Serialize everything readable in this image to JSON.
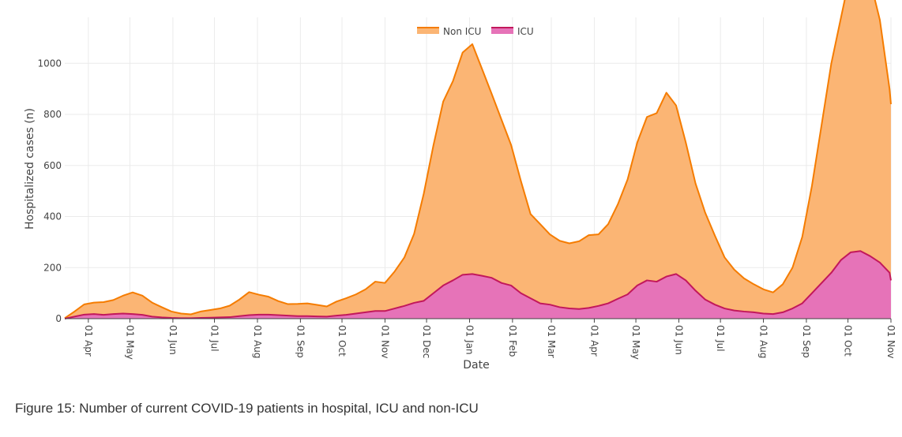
{
  "caption": "Figure 15: Number of current COVID-19 patients in hospital, ICU and non-ICU",
  "chart_data": {
    "type": "area",
    "stacked": true,
    "xlabel": "Date",
    "ylabel": "Hospitalized cases (n)",
    "x_range": [
      "2020-03-15",
      "2021-11-01"
    ],
    "ylim": [
      0,
      1180
    ],
    "y_ticks": [
      0,
      200,
      400,
      600,
      800,
      1000
    ],
    "x_ticks": [
      {
        "date": "2020-04-01",
        "label": "01 Apr"
      },
      {
        "date": "2020-05-01",
        "label": "01 May"
      },
      {
        "date": "2020-06-01",
        "label": "01 Jun"
      },
      {
        "date": "2020-07-01",
        "label": "01 Jul"
      },
      {
        "date": "2020-08-01",
        "label": "01 Aug"
      },
      {
        "date": "2020-09-01",
        "label": "01 Sep"
      },
      {
        "date": "2020-10-01",
        "label": "01 Oct"
      },
      {
        "date": "2020-11-01",
        "label": "01 Nov"
      },
      {
        "date": "2020-12-01",
        "label": "01 Dec"
      },
      {
        "date": "2021-01-01",
        "label": "01 Jan"
      },
      {
        "date": "2021-02-01",
        "label": "01 Feb"
      },
      {
        "date": "2021-03-01",
        "label": "01 Mar"
      },
      {
        "date": "2021-04-01",
        "label": "01 Apr"
      },
      {
        "date": "2021-05-01",
        "label": "01 May"
      },
      {
        "date": "2021-06-01",
        "label": "01 Jun"
      },
      {
        "date": "2021-07-01",
        "label": "01 Jul"
      },
      {
        "date": "2021-08-01",
        "label": "01 Aug"
      },
      {
        "date": "2021-09-01",
        "label": "01 Sep"
      },
      {
        "date": "2021-10-01",
        "label": "01 Oct"
      },
      {
        "date": "2021-11-01",
        "label": "01 Nov"
      }
    ],
    "grid": true,
    "legend_position": "top-center",
    "series": [
      {
        "name": "Non ICU",
        "line_color": "#f57c00",
        "fill_color": "#fbb574",
        "points": [
          [
            "2020-03-15",
            2
          ],
          [
            "2020-03-22",
            20
          ],
          [
            "2020-03-29",
            40
          ],
          [
            "2020-04-05",
            45
          ],
          [
            "2020-04-12",
            50
          ],
          [
            "2020-04-19",
            55
          ],
          [
            "2020-04-26",
            70
          ],
          [
            "2020-05-03",
            85
          ],
          [
            "2020-05-10",
            75
          ],
          [
            "2020-05-17",
            55
          ],
          [
            "2020-05-24",
            40
          ],
          [
            "2020-05-31",
            25
          ],
          [
            "2020-06-07",
            18
          ],
          [
            "2020-06-14",
            15
          ],
          [
            "2020-06-21",
            25
          ],
          [
            "2020-06-28",
            30
          ],
          [
            "2020-07-05",
            35
          ],
          [
            "2020-07-12",
            45
          ],
          [
            "2020-07-19",
            65
          ],
          [
            "2020-07-26",
            90
          ],
          [
            "2020-08-02",
            78
          ],
          [
            "2020-08-09",
            70
          ],
          [
            "2020-08-16",
            55
          ],
          [
            "2020-08-23",
            45
          ],
          [
            "2020-08-30",
            48
          ],
          [
            "2020-09-06",
            50
          ],
          [
            "2020-09-13",
            45
          ],
          [
            "2020-09-20",
            40
          ],
          [
            "2020-09-27",
            55
          ],
          [
            "2020-10-04",
            65
          ],
          [
            "2020-10-11",
            75
          ],
          [
            "2020-10-18",
            90
          ],
          [
            "2020-10-25",
            115
          ],
          [
            "2020-11-01",
            110
          ],
          [
            "2020-11-08",
            145
          ],
          [
            "2020-11-15",
            190
          ],
          [
            "2020-11-22",
            270
          ],
          [
            "2020-11-29",
            420
          ],
          [
            "2020-12-06",
            580
          ],
          [
            "2020-12-13",
            720
          ],
          [
            "2020-12-20",
            780
          ],
          [
            "2020-12-27",
            870
          ],
          [
            "2021-01-03",
            900
          ],
          [
            "2021-01-10",
            810
          ],
          [
            "2021-01-17",
            720
          ],
          [
            "2021-01-24",
            640
          ],
          [
            "2021-01-31",
            550
          ],
          [
            "2021-02-07",
            440
          ],
          [
            "2021-02-14",
            330
          ],
          [
            "2021-02-21",
            310
          ],
          [
            "2021-02-28",
            275
          ],
          [
            "2021-03-07",
            260
          ],
          [
            "2021-03-14",
            255
          ],
          [
            "2021-03-21",
            265
          ],
          [
            "2021-03-28",
            285
          ],
          [
            "2021-04-04",
            280
          ],
          [
            "2021-04-11",
            310
          ],
          [
            "2021-04-18",
            370
          ],
          [
            "2021-04-25",
            450
          ],
          [
            "2021-05-02",
            560
          ],
          [
            "2021-05-09",
            640
          ],
          [
            "2021-05-16",
            660
          ],
          [
            "2021-05-23",
            720
          ],
          [
            "2021-05-30",
            660
          ],
          [
            "2021-06-06",
            540
          ],
          [
            "2021-06-13",
            420
          ],
          [
            "2021-06-20",
            340
          ],
          [
            "2021-06-27",
            270
          ],
          [
            "2021-07-04",
            200
          ],
          [
            "2021-07-11",
            160
          ],
          [
            "2021-07-18",
            130
          ],
          [
            "2021-07-25",
            110
          ],
          [
            "2021-08-01",
            95
          ],
          [
            "2021-08-08",
            85
          ],
          [
            "2021-08-15",
            110
          ],
          [
            "2021-08-22",
            160
          ],
          [
            "2021-08-29",
            260
          ],
          [
            "2021-09-05",
            420
          ],
          [
            "2021-09-12",
            620
          ],
          [
            "2021-09-19",
            820
          ],
          [
            "2021-09-26",
            950
          ],
          [
            "2021-10-03",
            1100
          ],
          [
            "2021-10-10",
            1110
          ],
          [
            "2021-10-17",
            1080
          ],
          [
            "2021-10-24",
            950
          ],
          [
            "2021-10-31",
            720
          ],
          [
            "2021-11-01",
            690
          ]
        ]
      },
      {
        "name": "ICU",
        "line_color": "#c2185b",
        "fill_color": "#e673b8",
        "points": [
          [
            "2020-03-15",
            0
          ],
          [
            "2020-03-22",
            8
          ],
          [
            "2020-03-29",
            16
          ],
          [
            "2020-04-05",
            18
          ],
          [
            "2020-04-12",
            15
          ],
          [
            "2020-04-19",
            18
          ],
          [
            "2020-04-26",
            20
          ],
          [
            "2020-05-03",
            18
          ],
          [
            "2020-05-10",
            15
          ],
          [
            "2020-05-17",
            8
          ],
          [
            "2020-05-24",
            5
          ],
          [
            "2020-05-31",
            3
          ],
          [
            "2020-06-07",
            2
          ],
          [
            "2020-06-14",
            2
          ],
          [
            "2020-06-21",
            3
          ],
          [
            "2020-06-28",
            4
          ],
          [
            "2020-07-05",
            5
          ],
          [
            "2020-07-12",
            6
          ],
          [
            "2020-07-19",
            10
          ],
          [
            "2020-07-26",
            14
          ],
          [
            "2020-08-02",
            16
          ],
          [
            "2020-08-09",
            16
          ],
          [
            "2020-08-16",
            14
          ],
          [
            "2020-08-23",
            12
          ],
          [
            "2020-08-30",
            10
          ],
          [
            "2020-09-06",
            10
          ],
          [
            "2020-09-13",
            9
          ],
          [
            "2020-09-20",
            8
          ],
          [
            "2020-09-27",
            12
          ],
          [
            "2020-10-04",
            15
          ],
          [
            "2020-10-11",
            20
          ],
          [
            "2020-10-18",
            25
          ],
          [
            "2020-10-25",
            30
          ],
          [
            "2020-11-01",
            30
          ],
          [
            "2020-11-08",
            40
          ],
          [
            "2020-11-15",
            50
          ],
          [
            "2020-11-22",
            62
          ],
          [
            "2020-11-29",
            70
          ],
          [
            "2020-12-06",
            100
          ],
          [
            "2020-12-13",
            130
          ],
          [
            "2020-12-20",
            150
          ],
          [
            "2020-12-27",
            172
          ],
          [
            "2021-01-03",
            175
          ],
          [
            "2021-01-10",
            168
          ],
          [
            "2021-01-17",
            160
          ],
          [
            "2021-01-24",
            140
          ],
          [
            "2021-01-31",
            130
          ],
          [
            "2021-02-07",
            100
          ],
          [
            "2021-02-14",
            80
          ],
          [
            "2021-02-21",
            60
          ],
          [
            "2021-02-28",
            55
          ],
          [
            "2021-03-07",
            45
          ],
          [
            "2021-03-14",
            40
          ],
          [
            "2021-03-21",
            38
          ],
          [
            "2021-03-28",
            42
          ],
          [
            "2021-04-04",
            50
          ],
          [
            "2021-04-11",
            60
          ],
          [
            "2021-04-18",
            78
          ],
          [
            "2021-04-25",
            95
          ],
          [
            "2021-05-02",
            130
          ],
          [
            "2021-05-09",
            150
          ],
          [
            "2021-05-16",
            145
          ],
          [
            "2021-05-23",
            165
          ],
          [
            "2021-05-30",
            175
          ],
          [
            "2021-06-06",
            150
          ],
          [
            "2021-06-13",
            110
          ],
          [
            "2021-06-20",
            75
          ],
          [
            "2021-06-27",
            55
          ],
          [
            "2021-07-04",
            40
          ],
          [
            "2021-07-11",
            32
          ],
          [
            "2021-07-18",
            28
          ],
          [
            "2021-07-25",
            25
          ],
          [
            "2021-08-01",
            20
          ],
          [
            "2021-08-08",
            18
          ],
          [
            "2021-08-15",
            25
          ],
          [
            "2021-08-22",
            40
          ],
          [
            "2021-08-29",
            60
          ],
          [
            "2021-09-05",
            100
          ],
          [
            "2021-09-12",
            140
          ],
          [
            "2021-09-19",
            180
          ],
          [
            "2021-09-26",
            230
          ],
          [
            "2021-10-03",
            260
          ],
          [
            "2021-10-10",
            265
          ],
          [
            "2021-10-17",
            245
          ],
          [
            "2021-10-24",
            220
          ],
          [
            "2021-10-31",
            180
          ],
          [
            "2021-11-01",
            150
          ]
        ]
      }
    ]
  }
}
